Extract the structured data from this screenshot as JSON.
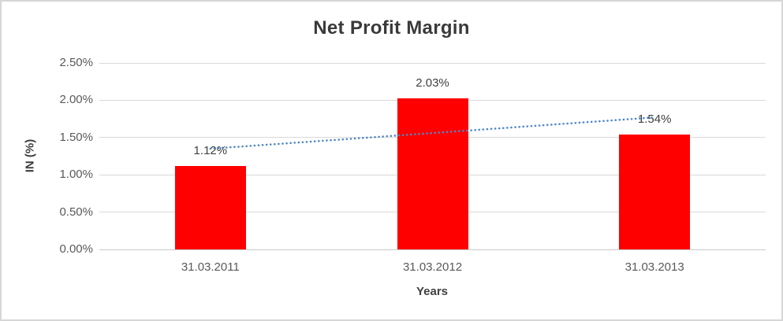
{
  "chart_data": {
    "type": "bar",
    "title": "Net Profit Margin",
    "categories": [
      "31.03.2011",
      "31.03.2012",
      "31.03.2013"
    ],
    "values": [
      1.12,
      2.03,
      1.54
    ],
    "data_labels": [
      "1.12%",
      "2.03%",
      "1.54%"
    ],
    "xlabel": "Years",
    "ylabel": "IN (%)",
    "ylim": [
      0,
      2.5
    ],
    "y_ticks": [
      {
        "value": 0.0,
        "label": "0.00%"
      },
      {
        "value": 0.5,
        "label": "0.50%"
      },
      {
        "value": 1.0,
        "label": "1.00%"
      },
      {
        "value": 1.5,
        "label": "1.50%"
      },
      {
        "value": 2.0,
        "label": "2.00%"
      },
      {
        "value": 2.5,
        "label": "2.50%"
      }
    ],
    "grid": "horizontal",
    "legend": "none",
    "bar_color": "#FF0000",
    "trendline": {
      "type": "linear",
      "style": "dotted",
      "color": "#4E87C7",
      "start_value": 1.35,
      "end_value": 1.77
    },
    "colors": {
      "title_text": "#3A3A3A",
      "axis_text": "#595959",
      "data_label_text": "#404040",
      "gridline": "#D9D9D9",
      "axis_line": "#C9C9C9",
      "frame_border": "#D6D6D6",
      "background": "#FFFFFF"
    }
  }
}
